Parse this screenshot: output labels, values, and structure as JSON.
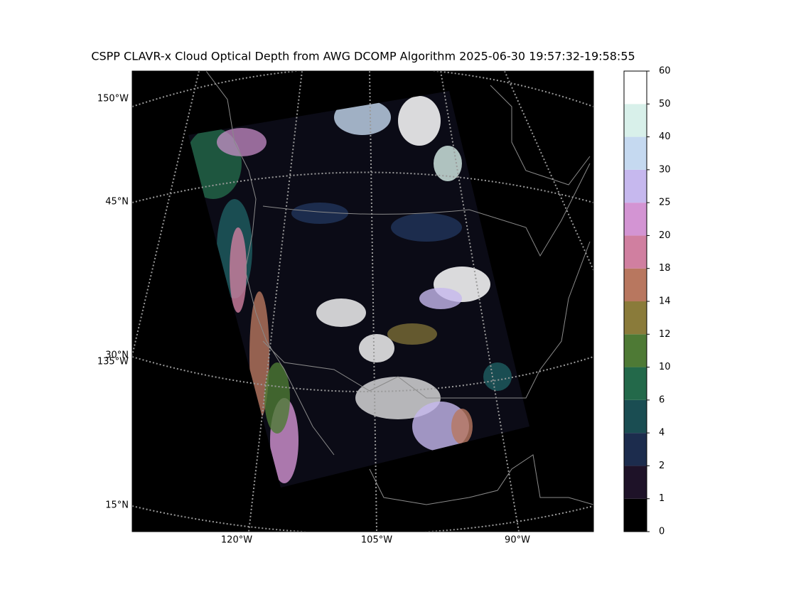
{
  "map": {
    "title": "CSPP CLAVR-x Cloud Optical Depth from AWG DCOMP Algorithm 2025-06-30 19:57:32-19:58:55",
    "graticule_labels": [
      "150°W",
      "45°N",
      "30°N",
      "135°W",
      "15°N",
      "120°W",
      "105°W",
      "90°W"
    ]
  },
  "colorbar": {
    "boundaries": [
      0,
      1,
      2,
      4,
      6,
      10,
      12,
      14,
      18,
      20,
      25,
      30,
      40,
      50,
      60
    ],
    "colors": [
      "#000000",
      "#1e1228",
      "#1c2c4d",
      "#1a4d52",
      "#23694a",
      "#4e7a35",
      "#8a7b3a",
      "#b8775f",
      "#d07fa0",
      "#d394d3",
      "#c6b8ee",
      "#c5d9f0",
      "#d8f0ea",
      "#ffffff"
    ]
  }
}
